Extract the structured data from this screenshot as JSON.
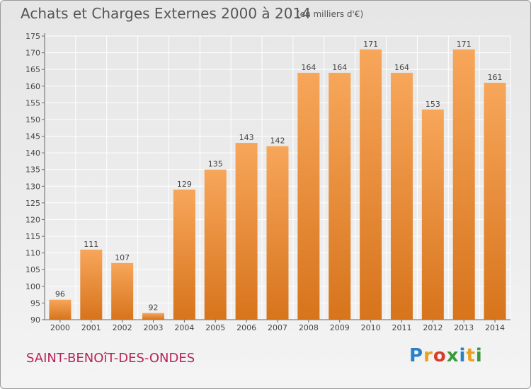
{
  "header": {
    "title": "Achats et Charges Externes 2000 à 2014",
    "subtitle": "(en milliers d'€)"
  },
  "footer": {
    "commune": "SAINT-BENOîT-DES-ONDES",
    "logo": "Proxiti"
  },
  "colors": {
    "bar_top": "#f7a65a",
    "bar_bottom": "#d7741c",
    "grid": "#ffffff",
    "title": "#555555",
    "commune": "#b5255b"
  },
  "chart_data": {
    "type": "bar",
    "categories": [
      "2000",
      "2001",
      "2002",
      "2003",
      "2004",
      "2005",
      "2006",
      "2007",
      "2008",
      "2009",
      "2010",
      "2011",
      "2012",
      "2013",
      "2014"
    ],
    "values": [
      96,
      111,
      107,
      92,
      129,
      135,
      143,
      142,
      164,
      164,
      171,
      164,
      153,
      171,
      161
    ],
    "ylim": [
      90,
      175
    ],
    "yticks": [
      90,
      95,
      100,
      105,
      110,
      115,
      120,
      125,
      130,
      135,
      140,
      145,
      150,
      155,
      160,
      165,
      170,
      175
    ],
    "grid": true,
    "legend": "none"
  }
}
